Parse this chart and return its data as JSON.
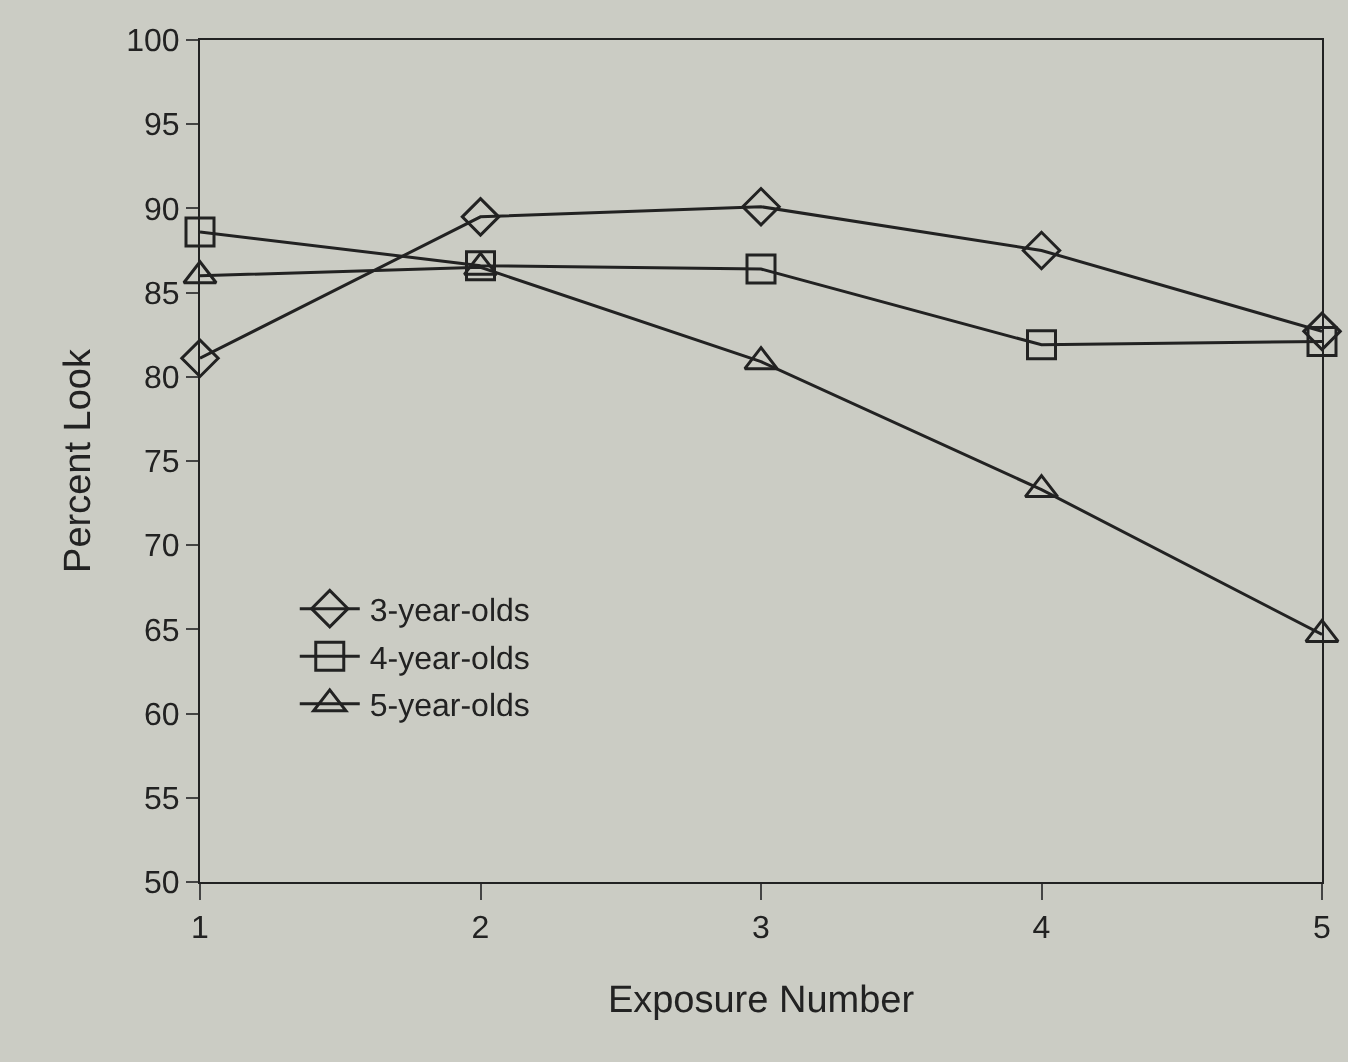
{
  "chart_data": {
    "type": "line",
    "xlabel": "Exposure Number",
    "ylabel": "Percent Look",
    "x": [
      1,
      2,
      3,
      4,
      5
    ],
    "xlim": [
      1,
      5
    ],
    "xticks": [
      1,
      2,
      3,
      4,
      5
    ],
    "ylim": [
      50,
      100
    ],
    "yticks": [
      50,
      55,
      60,
      65,
      70,
      75,
      80,
      85,
      90,
      95,
      100
    ],
    "grid": false,
    "legend": "bottom left",
    "line_style": "solid",
    "series": [
      {
        "name": "3-year-olds",
        "color": "#222222",
        "marker": "diamond",
        "values": [
          81.1,
          89.5,
          90.1,
          87.5,
          82.7
        ]
      },
      {
        "name": "4-year-olds",
        "color": "#222222",
        "marker": "square",
        "values": [
          88.6,
          86.6,
          86.4,
          81.9,
          82.1
        ]
      },
      {
        "name": "5-year-olds",
        "color": "#222222",
        "marker": "triangle",
        "values": [
          86.0,
          86.5,
          80.9,
          73.3,
          64.7
        ]
      }
    ]
  }
}
